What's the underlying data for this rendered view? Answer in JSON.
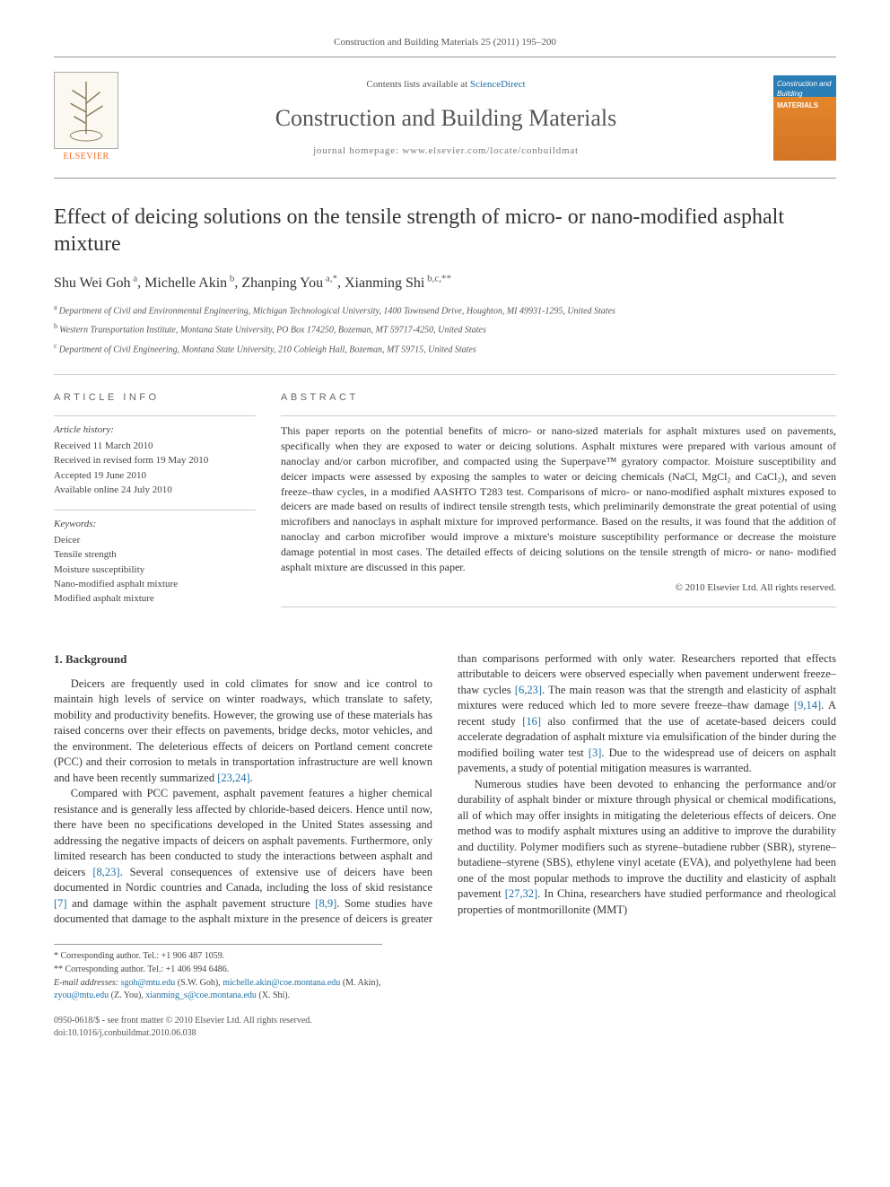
{
  "journal_ref": "Construction and Building Materials 25 (2011) 195–200",
  "contents_prefix": "Contents lists available at ",
  "contents_link": "ScienceDirect",
  "journal_name": "Construction and Building Materials",
  "homepage_prefix": "journal homepage: ",
  "homepage_url": "www.elsevier.com/locate/conbuildmat",
  "publisher": "ELSEVIER",
  "cover_text_top": "Construction and Building",
  "cover_text_main": "MATERIALS",
  "title": "Effect of deicing solutions on the tensile strength of micro- or nano-modified asphalt mixture",
  "authors_html": "Shu Wei Goh",
  "authors": [
    {
      "name": "Shu Wei Goh",
      "sup": "a"
    },
    {
      "name": "Michelle Akin",
      "sup": "b"
    },
    {
      "name": "Zhanping You",
      "sup": "a,*"
    },
    {
      "name": "Xianming Shi",
      "sup": "b,c,**"
    }
  ],
  "affiliations": [
    {
      "sup": "a",
      "text": "Department of Civil and Environmental Engineering, Michigan Technological University, 1400 Townsend Drive, Houghton, MI 49931-1295, United States"
    },
    {
      "sup": "b",
      "text": "Western Transportation Institute, Montana State University, PO Box 174250, Bozeman, MT 59717-4250, United States"
    },
    {
      "sup": "c",
      "text": "Department of Civil Engineering, Montana State University, 210 Cobleigh Hall, Bozeman, MT 59715, United States"
    }
  ],
  "article_info_head": "ARTICLE INFO",
  "abstract_head": "ABSTRACT",
  "history_head": "Article history:",
  "history": [
    "Received 11 March 2010",
    "Received in revised form 19 May 2010",
    "Accepted 19 June 2010",
    "Available online 24 July 2010"
  ],
  "keywords_head": "Keywords:",
  "keywords": [
    "Deicer",
    "Tensile strength",
    "Moisture susceptibility",
    "Nano-modified asphalt mixture",
    "Modified asphalt mixture"
  ],
  "abstract": "This paper reports on the potential benefits of micro- or nano-sized materials for asphalt mixtures used on pavements, specifically when they are exposed to water or deicing solutions. Asphalt mixtures were prepared with various amount of nanoclay and/or carbon microfiber, and compacted using the Superpave™ gyratory compactor. Moisture susceptibility and deicer impacts were assessed by exposing the samples to water or deicing chemicals (NaCl, MgCl₂ and CaCl₂), and seven freeze–thaw cycles, in a modified AASHTO T283 test. Comparisons of micro- or nano-modified asphalt mixtures exposed to deicers are made based on results of indirect tensile strength tests, which preliminarily demonstrate the great potential of using microfibers and nanoclays in asphalt mixture for improved performance. Based on the results, it was found that the addition of nanoclay and carbon microfiber would improve a mixture's moisture susceptibility performance or decrease the moisture damage potential in most cases. The detailed effects of deicing solutions on the tensile strength of micro- or nano- modified asphalt mixture are discussed in this paper.",
  "copyright": "© 2010 Elsevier Ltd. All rights reserved.",
  "section1_head": "1. Background",
  "para1": "Deicers are frequently used in cold climates for snow and ice control to maintain high levels of service on winter roadways, which translate to safety, mobility and productivity benefits. However, the growing use of these materials has raised concerns over their effects on pavements, bridge decks, motor vehicles, and the environment. The deleterious effects of deicers on Portland cement concrete (PCC) and their corrosion to metals in transportation infrastructure are well known and have been recently summarized ",
  "para1_ref": "[23,24]",
  "para1_end": ".",
  "para2": "Compared with PCC pavement, asphalt pavement features a higher chemical resistance and is generally less affected by chloride-based deicers. Hence until now, there have been no specifications developed in the United States assessing and addressing the negative impacts of deicers on asphalt pavements. Furthermore, only limited research has been conducted to study the interactions between asphalt and deicers ",
  "para2_ref1": "[8,23]",
  "para2_mid": ". Several consequences of extensive use of deicers have been documented in Nordic countries and Canada, including the loss of skid resistance ",
  "para2_ref2": "[7]",
  "para2_mid2": " and damage within the asphalt pavement structure ",
  "para2_ref3": "[8,9]",
  "para2_mid3": ". Some studies have documented that damage to the asphalt mixture in the presence of deicers is greater than comparisons performed with only water. Researchers reported that effects attributable to deicers were observed especially when pavement underwent freeze–thaw cycles ",
  "para2_ref4": "[6,23]",
  "para2_mid4": ". The main reason was that the strength and elasticity of asphalt mixtures were reduced which led to more severe freeze–thaw damage ",
  "para2_ref5": "[9,14]",
  "para2_mid5": ". A recent study ",
  "para2_ref6": "[16]",
  "para2_mid6": " also confirmed that the use of acetate-based deicers could accelerate degradation of asphalt mixture via emulsification of the binder during the modified boiling water test ",
  "para2_ref7": "[3]",
  "para2_end": ". Due to the widespread use of deicers on asphalt pavements, a study of potential mitigation measures is warranted.",
  "para3": "Numerous studies have been devoted to enhancing the performance and/or durability of asphalt binder or mixture through physical or chemical modifications, all of which may offer insights in mitigating the deleterious effects of deicers. One method was to modify asphalt mixtures using an additive to improve the durability and ductility. Polymer modifiers such as styrene–butadiene rubber (SBR), styrene–butadiene–styrene (SBS), ethylene vinyl acetate (EVA), and polyethylene had been one of the most popular methods to improve the ductility and elasticity of asphalt pavement ",
  "para3_ref": "[27,32]",
  "para3_end": ". In China, researchers have studied performance and rheological properties of montmorillonite (MMT)",
  "footnote_corr1": "* Corresponding author. Tel.: +1 906 487 1059.",
  "footnote_corr2": "** Corresponding author. Tel.: +1 406 994 6486.",
  "footnote_email_label": "E-mail addresses: ",
  "footnote_emails": [
    {
      "email": "sgoh@mtu.edu",
      "who": " (S.W. Goh), "
    },
    {
      "email": "michelle.akin@coe.montana.edu",
      "who": " (M. Akin), "
    },
    {
      "email": "zyou@mtu.edu",
      "who": " (Z. You), "
    },
    {
      "email": "xianming_s@coe.montana.edu",
      "who": " (X. Shi)."
    }
  ],
  "bottom_issn": "0950-0618/$ - see front matter © 2010 Elsevier Ltd. All rights reserved.",
  "bottom_doi": "doi:10.1016/j.conbuildmat.2010.06.038",
  "colors": {
    "link": "#1d6fa5",
    "elsevier_orange": "#f36f21",
    "cover_blue": "#2b7eb5",
    "cover_orange": "#d47426"
  }
}
